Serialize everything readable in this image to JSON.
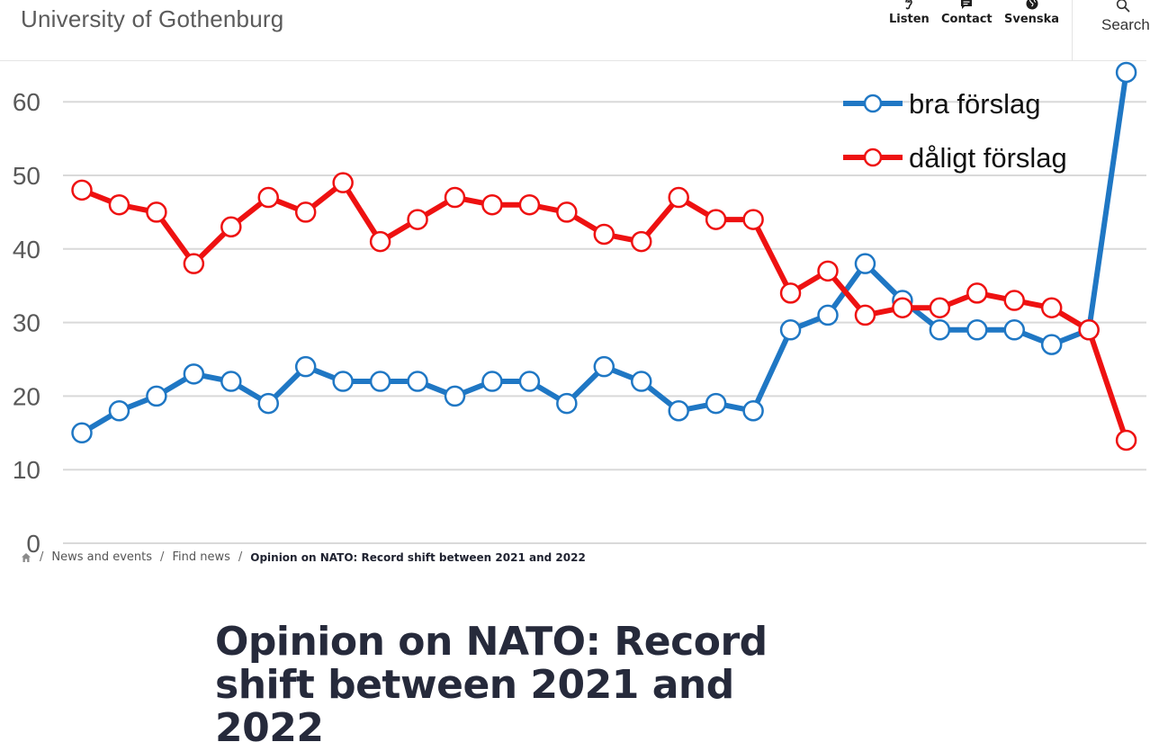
{
  "header": {
    "site_title": "University of Gothenburg",
    "listen_label": "Listen",
    "contact_label": "Contact",
    "language_label": "Svenska",
    "search_label": "Search"
  },
  "breadcrumb": {
    "items": [
      "News and events",
      "Find news"
    ],
    "current": "Opinion on NATO: Record shift between 2021 and 2022"
  },
  "article": {
    "title": "Opinion on NATO: Record shift between 2021 and 2022"
  },
  "chart_data": {
    "type": "line",
    "title": "",
    "xlabel": "",
    "ylabel": "",
    "ylim": [
      0,
      65
    ],
    "yticks": [
      0,
      10,
      20,
      30,
      40,
      50,
      60
    ],
    "ytick_labels": [
      "0",
      "10",
      "20",
      "30",
      "40",
      "50",
      "60"
    ],
    "grid": true,
    "legend_position": "top-right",
    "series": [
      {
        "name": "bra förslag",
        "color": "#1f77c4",
        "values": [
          15,
          18,
          20,
          23,
          22,
          19,
          24,
          22,
          22,
          22,
          20,
          22,
          22,
          19,
          24,
          22,
          18,
          19,
          18,
          29,
          31,
          38,
          33,
          29,
          29,
          29,
          27,
          29,
          64
        ]
      },
      {
        "name": "dåligt förslag",
        "color": "#ee1111",
        "values": [
          48,
          46,
          45,
          38,
          43,
          47,
          45,
          49,
          41,
          44,
          47,
          46,
          46,
          45,
          42,
          41,
          47,
          44,
          44,
          34,
          37,
          31,
          32,
          32,
          34,
          33,
          32,
          29,
          14
        ]
      }
    ]
  }
}
